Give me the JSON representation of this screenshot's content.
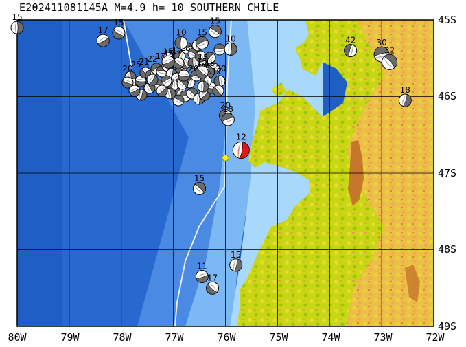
{
  "title": "E202411081145A  M=4.9  h= 10  SOUTHERN CHILE",
  "map": {
    "lon_range": [
      -80,
      -72
    ],
    "lat_range": [
      -49,
      -45
    ],
    "x_tick_labels": [
      "80W",
      "79W",
      "78W",
      "77W",
      "76W",
      "75W",
      "74W",
      "73W",
      "72W"
    ],
    "y_tick_labels": [
      "45S",
      "46S",
      "47S",
      "48S",
      "49S"
    ],
    "colors": {
      "deep_ocean": "#1f5fc4",
      "ocean": "#3d7fe0",
      "shelf": "#7bb8f4",
      "coast_water": "#a8d8fb",
      "lowland": "#b8d30a",
      "midland": "#e2d92a",
      "highland": "#f0b04c",
      "peak": "#c6772b",
      "trench_line": "#e8eef8",
      "main_event": "#e01818",
      "epicenter": "#ffee00"
    }
  },
  "main_event": {
    "label": "12",
    "lon": -75.7,
    "lat": -46.7
  },
  "epicenter_star": {
    "lon": -76.0,
    "lat": -46.8
  },
  "labeled_events": [
    {
      "label": "15",
      "lon": -80.0,
      "lat": -45.1
    },
    {
      "label": "17",
      "lon": -78.35,
      "lat": -45.27
    },
    {
      "label": "15",
      "lon": -78.05,
      "lat": -45.17
    },
    {
      "label": "10",
      "lon": -76.85,
      "lat": -45.3
    },
    {
      "label": "15",
      "lon": -76.45,
      "lat": -45.3
    },
    {
      "label": "15",
      "lon": -76.2,
      "lat": -45.15
    },
    {
      "label": "10",
      "lon": -75.9,
      "lat": -45.38
    },
    {
      "label": "15",
      "lon": -77.1,
      "lat": -45.55
    },
    {
      "label": "15",
      "lon": -76.45,
      "lat": -45.68
    },
    {
      "label": "20",
      "lon": -76.0,
      "lat": -46.25
    },
    {
      "label": "18",
      "lon": -75.95,
      "lat": -46.3
    },
    {
      "label": "15",
      "lon": -76.5,
      "lat": -47.2
    },
    {
      "label": "15",
      "lon": -75.8,
      "lat": -48.2
    },
    {
      "label": "11",
      "lon": -76.45,
      "lat": -48.35
    },
    {
      "label": "17",
      "lon": -76.25,
      "lat": -48.5
    },
    {
      "label": "42",
      "lon": -73.6,
      "lat": -45.4
    },
    {
      "label": "30",
      "lon": -73.0,
      "lat": -45.45
    },
    {
      "label": "32",
      "lon": -72.85,
      "lat": -45.55
    },
    {
      "label": "18",
      "lon": -72.55,
      "lat": -46.05
    }
  ],
  "cluster_labels": [
    "20",
    "25",
    "21",
    "22",
    "17",
    "15",
    "17",
    "18",
    "20",
    "10",
    "15",
    "15",
    "17",
    "20"
  ]
}
